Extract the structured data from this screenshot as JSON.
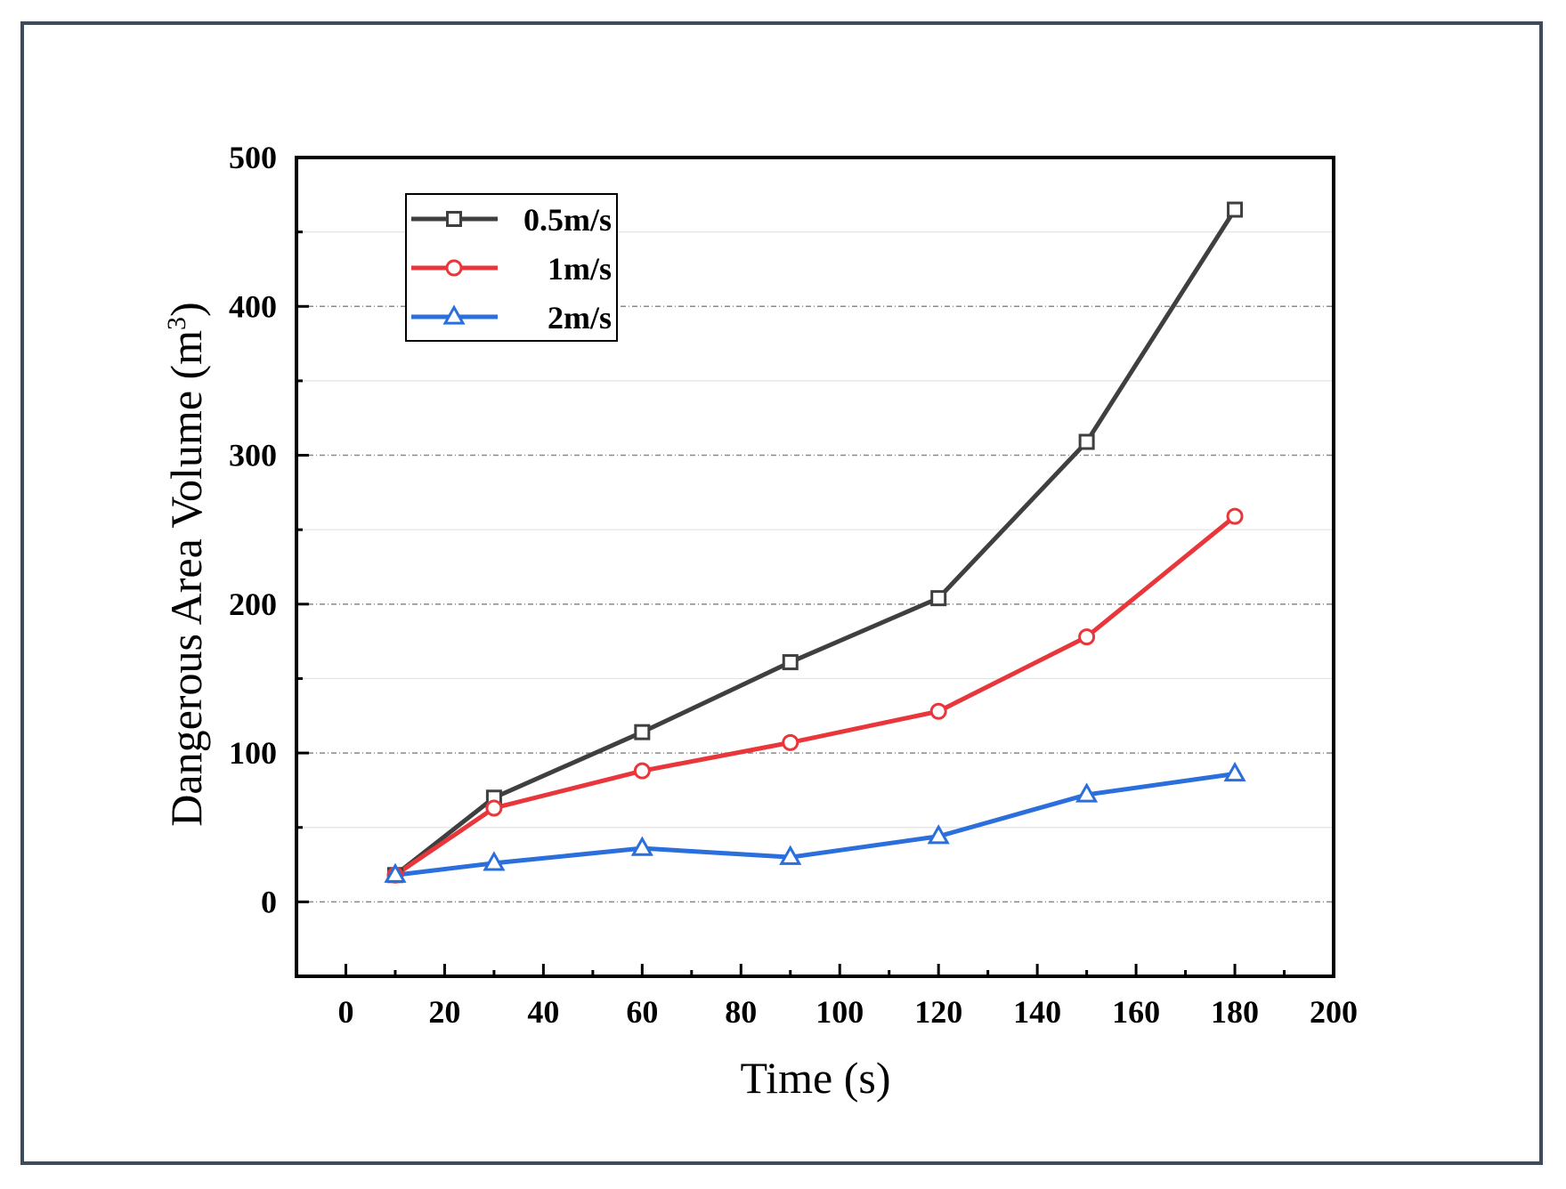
{
  "chart_data": {
    "type": "line",
    "title": "",
    "xlabel": "Time (s)",
    "ylabel": "Dangerous Area Volume (m",
    "ylabel_superscript": "3",
    "ylabel_suffix": ")",
    "xlim": [
      -10,
      200
    ],
    "ylim": [
      -50,
      500
    ],
    "xticks": [
      0,
      20,
      40,
      60,
      80,
      100,
      120,
      140,
      160,
      180,
      200
    ],
    "yticks": [
      0,
      100,
      200,
      300,
      400,
      500
    ],
    "grid": true,
    "legend_position": "top-left",
    "x": [
      10,
      30,
      60,
      90,
      120,
      150,
      180
    ],
    "series": [
      {
        "name": "0.5m/s",
        "color": "#3f3f3f",
        "marker": "square",
        "values": [
          18,
          70,
          114,
          161,
          204,
          309,
          465
        ]
      },
      {
        "name": "1m/s",
        "color": "#e8363a",
        "marker": "circle",
        "values": [
          18,
          63,
          88,
          107,
          128,
          178,
          259
        ]
      },
      {
        "name": "2m/s",
        "color": "#2a6fdb",
        "marker": "triangle",
        "values": [
          18,
          26,
          36,
          30,
          44,
          72,
          86
        ]
      }
    ]
  }
}
